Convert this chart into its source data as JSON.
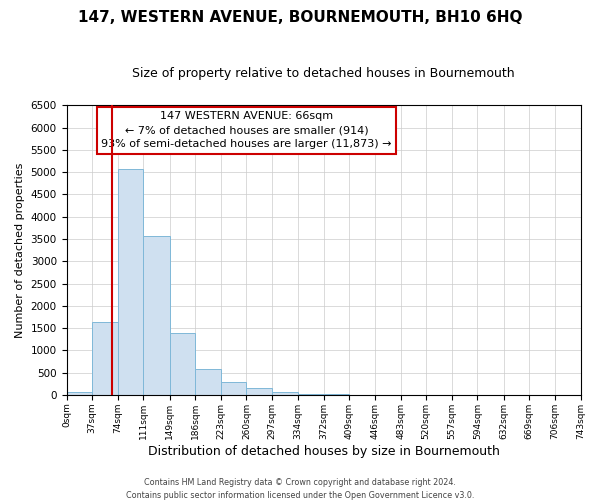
{
  "title": "147, WESTERN AVENUE, BOURNEMOUTH, BH10 6HQ",
  "subtitle": "Size of property relative to detached houses in Bournemouth",
  "xlabel": "Distribution of detached houses by size in Bournemouth",
  "ylabel": "Number of detached properties",
  "bar_color": "#cfe0f0",
  "bar_edge_color": "#7fb8d8",
  "bin_edges": [
    0,
    37,
    74,
    111,
    149,
    186,
    223,
    260,
    297,
    334,
    372,
    409,
    446,
    483,
    520,
    557,
    594,
    632,
    669,
    706,
    743
  ],
  "bin_labels": [
    "0sqm",
    "37sqm",
    "74sqm",
    "111sqm",
    "149sqm",
    "186sqm",
    "223sqm",
    "260sqm",
    "297sqm",
    "334sqm",
    "372sqm",
    "409sqm",
    "446sqm",
    "483sqm",
    "520sqm",
    "557sqm",
    "594sqm",
    "632sqm",
    "669sqm",
    "706sqm",
    "743sqm"
  ],
  "bar_heights": [
    60,
    1640,
    5060,
    3570,
    1390,
    580,
    300,
    145,
    70,
    30,
    10,
    5,
    0,
    0,
    0,
    0,
    0,
    0,
    0,
    0
  ],
  "ylim": [
    0,
    6500
  ],
  "yticks": [
    0,
    500,
    1000,
    1500,
    2000,
    2500,
    3000,
    3500,
    4000,
    4500,
    5000,
    5500,
    6000,
    6500
  ],
  "xlim": [
    0,
    743
  ],
  "property_line_x": 66,
  "annotation_title": "147 WESTERN AVENUE: 66sqm",
  "annotation_line1": "← 7% of detached houses are smaller (914)",
  "annotation_line2": "93% of semi-detached houses are larger (11,873) →",
  "red_line_color": "#cc0000",
  "annotation_box_edge_color": "#cc0000",
  "footer_line1": "Contains HM Land Registry data © Crown copyright and database right 2024.",
  "footer_line2": "Contains public sector information licensed under the Open Government Licence v3.0.",
  "background_color": "#ffffff",
  "grid_color": "#cccccc"
}
